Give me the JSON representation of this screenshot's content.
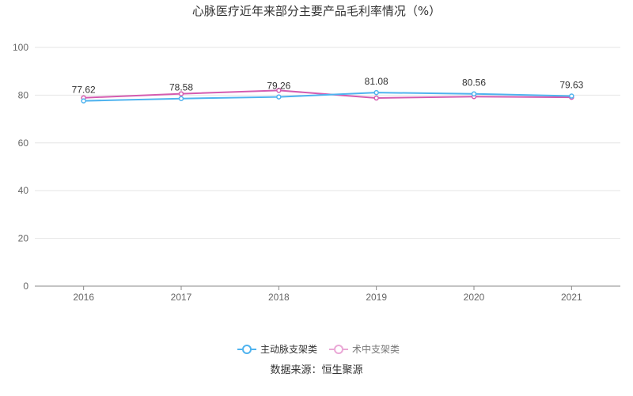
{
  "chart_data": {
    "type": "line",
    "title": "心脉医疗近年来部分主要产品毛利率情况（%）",
    "categories": [
      "2016",
      "2017",
      "2018",
      "2019",
      "2020",
      "2021"
    ],
    "ylim": [
      0,
      100
    ],
    "yticks": [
      0,
      20,
      40,
      60,
      80,
      100
    ],
    "grid": true,
    "legend": "bottom",
    "series": [
      {
        "name": "主动脉支架类",
        "values": [
          77.62,
          78.58,
          79.26,
          81.08,
          80.56,
          79.63
        ],
        "color": "#4fb3ef",
        "show_labels": true
      },
      {
        "name": "术中支架类",
        "values": [
          78.9,
          80.6,
          82.0,
          78.8,
          79.4,
          79.1
        ],
        "color": "#d45cb0",
        "legend_color": "#eaa8d6",
        "show_labels": false
      }
    ],
    "source": "数据来源：恒生聚源"
  }
}
